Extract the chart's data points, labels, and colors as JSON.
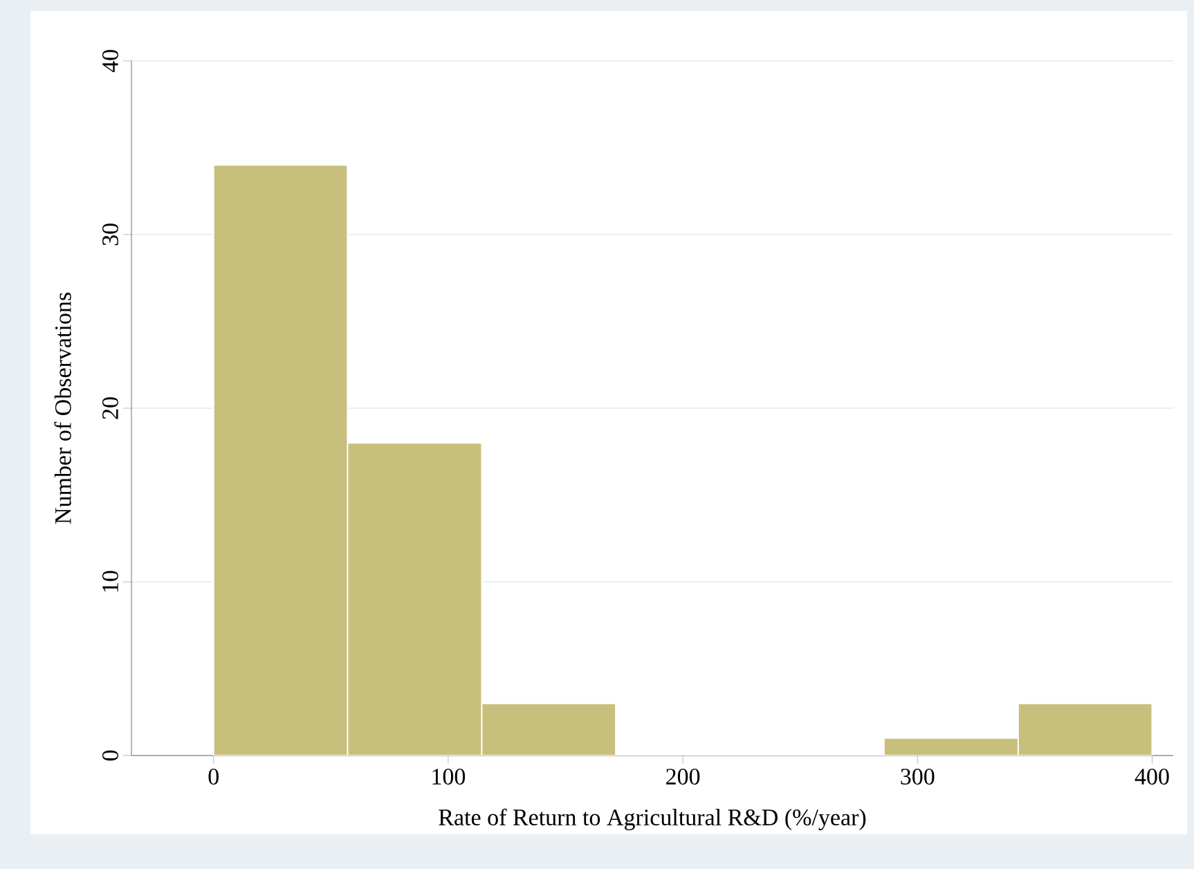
{
  "chart_data": {
    "type": "histogram",
    "xlabel": "Rate of Return to Agricultural R&D (%/year)",
    "ylabel": "Number of Observations",
    "bins": [
      0,
      57.1,
      114.3,
      171.4,
      228.6,
      285.7,
      342.9,
      400
    ],
    "values": [
      34,
      18,
      3,
      0,
      0,
      1,
      3
    ],
    "color": "#c8bf7c",
    "xlim": [
      -35,
      409
    ],
    "ylim": [
      0,
      40
    ],
    "xticks": [
      0,
      100,
      200,
      300,
      400
    ],
    "yticks": [
      0,
      10,
      20,
      30,
      40
    ],
    "grid": "y"
  }
}
